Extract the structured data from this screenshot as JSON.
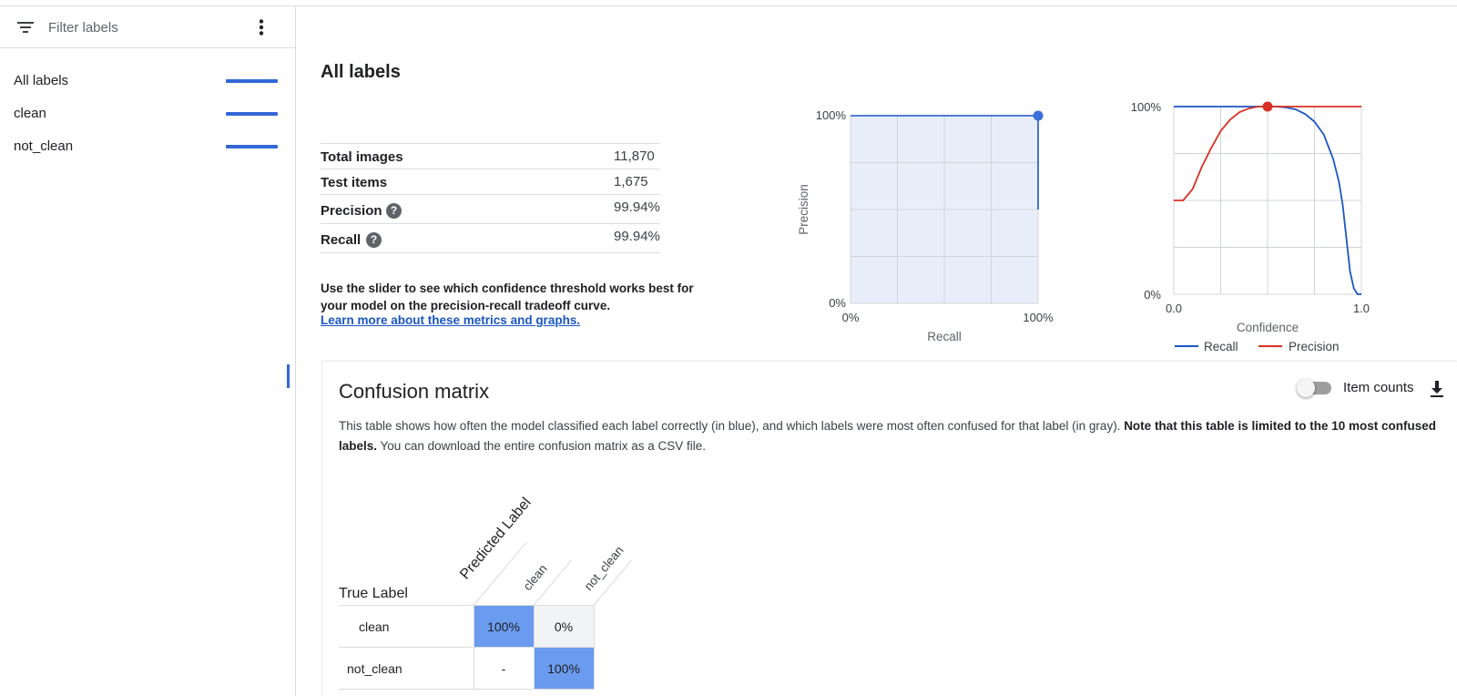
{
  "sidebar": {
    "filter_placeholder": "Filter labels",
    "items": [
      {
        "label": "All labels"
      },
      {
        "label": "clean"
      },
      {
        "label": "not_clean"
      }
    ]
  },
  "main": {
    "title": "All labels",
    "stats": [
      {
        "label": "Total images",
        "value": "11,870"
      },
      {
        "label": "Test items",
        "value": "1,675"
      },
      {
        "label": "Precision",
        "value": "99.94%"
      },
      {
        "label": "Recall",
        "value": "99.94%"
      }
    ],
    "slider_note": "Use the slider to see which confidence threshold works best for your model on the precision-recall tradeoff curve.",
    "learn_more": "Learn more about these metrics and graphs."
  },
  "pr_chart": {
    "y_ticks": [
      "100%",
      "0%"
    ],
    "x_ticks": [
      "0%",
      "100%"
    ],
    "xlabel": "Recall",
    "ylabel": "Precision"
  },
  "conf_chart": {
    "y_ticks": [
      "100%",
      "0%"
    ],
    "x_ticks": [
      "0.0",
      "1.0"
    ],
    "xlabel": "Confidence",
    "legend": [
      {
        "name": "Recall",
        "color": "#1a56c4"
      },
      {
        "name": "Precision",
        "color": "#d93025"
      }
    ]
  },
  "chart_data": [
    {
      "type": "line",
      "xlabel": "Recall",
      "ylabel": "Precision",
      "xlim": [
        0,
        1
      ],
      "ylim": [
        0,
        1
      ],
      "grid": true,
      "series": [
        {
          "x": [
            0,
            1,
            1
          ],
          "y": [
            1,
            1,
            0.5
          ],
          "color": "#1a56c4"
        }
      ],
      "marker": {
        "x": 1,
        "y": 1
      }
    },
    {
      "type": "line",
      "xlabel": "Confidence",
      "xlim": [
        0,
        1
      ],
      "ylim": [
        0,
        1
      ],
      "grid": true,
      "legend_position": "bottom",
      "series": [
        {
          "name": "Recall",
          "color": "#1a56c4",
          "x": [
            0,
            0.5,
            0.55,
            0.6,
            0.65,
            0.7,
            0.75,
            0.8,
            0.85,
            0.88,
            0.9,
            0.92,
            0.94,
            0.96,
            0.98,
            1.0
          ],
          "y": [
            1,
            1,
            1,
            0.995,
            0.985,
            0.96,
            0.92,
            0.85,
            0.72,
            0.6,
            0.48,
            0.3,
            0.12,
            0.03,
            0.0,
            0.0
          ]
        },
        {
          "name": "Precision",
          "color": "#d93025",
          "x": [
            0,
            0.05,
            0.1,
            0.15,
            0.2,
            0.25,
            0.3,
            0.35,
            0.4,
            0.45,
            0.5,
            0.6,
            0.8,
            1.0
          ],
          "y": [
            0.5,
            0.5,
            0.56,
            0.68,
            0.78,
            0.87,
            0.93,
            0.97,
            0.99,
            1.0,
            1.0,
            1.0,
            1.0,
            1.0
          ]
        }
      ],
      "marker": {
        "x": 0.5,
        "y": 1
      }
    }
  ],
  "confusion": {
    "title": "Confusion matrix",
    "item_counts_label": "Item counts",
    "desc_normal": "This table shows how often the model classified each label correctly (in blue), and which labels were most often confused for that label (in gray). ",
    "desc_bold": "Note that this table is limited to the 10 most confused labels.",
    "desc_tail": " You can download the entire confusion matrix as a CSV file.",
    "true_label": "True Label",
    "predicted_label": "Predicted Label",
    "columns": [
      "clean",
      "not_clean"
    ],
    "rows": [
      {
        "label": "clean",
        "cells": [
          "100%",
          "0%"
        ]
      },
      {
        "label": "not_clean",
        "cells": [
          "-",
          "100%"
        ]
      }
    ]
  }
}
